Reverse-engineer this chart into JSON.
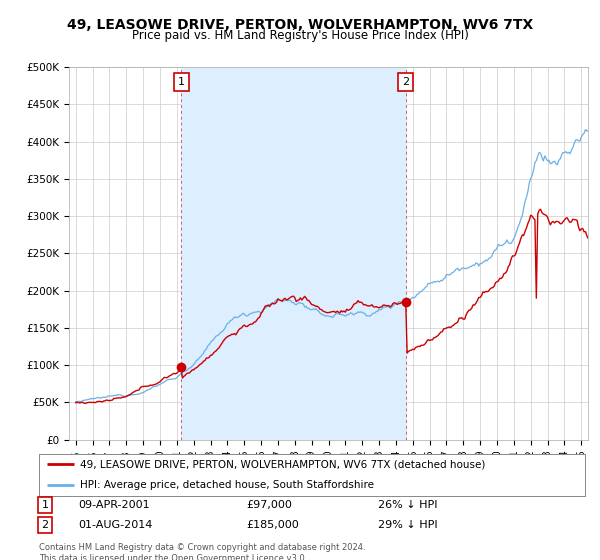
{
  "title": "49, LEASOWE DRIVE, PERTON, WOLVERHAMPTON, WV6 7TX",
  "subtitle": "Price paid vs. HM Land Registry's House Price Index (HPI)",
  "ylim": [
    0,
    500000
  ],
  "yticks": [
    0,
    50000,
    100000,
    150000,
    200000,
    250000,
    300000,
    350000,
    400000,
    450000,
    500000
  ],
  "ytick_labels": [
    "£0",
    "£50K",
    "£100K",
    "£150K",
    "£200K",
    "£250K",
    "£300K",
    "£350K",
    "£400K",
    "£450K",
    "£500K"
  ],
  "xlim_start": 1994.6,
  "xlim_end": 2025.4,
  "hpi_color": "#6ab0e8",
  "hpi_fill_color": "#ddeeff",
  "price_color": "#cc0000",
  "transaction1": {
    "date": 2001.27,
    "price": 97000,
    "label": "1",
    "date_str": "09-APR-2001",
    "price_str": "£97,000",
    "pct_str": "26% ↓ HPI"
  },
  "transaction2": {
    "date": 2014.58,
    "price": 185000,
    "label": "2",
    "date_str": "01-AUG-2014",
    "price_str": "£185,000",
    "pct_str": "29% ↓ HPI"
  },
  "legend_line1": "49, LEASOWE DRIVE, PERTON, WOLVERHAMPTON, WV6 7TX (detached house)",
  "legend_line2": "HPI: Average price, detached house, South Staffordshire",
  "footnote": "Contains HM Land Registry data © Crown copyright and database right 2024.\nThis data is licensed under the Open Government Licence v3.0.",
  "background_color": "#ffffff",
  "grid_color": "#cccccc"
}
